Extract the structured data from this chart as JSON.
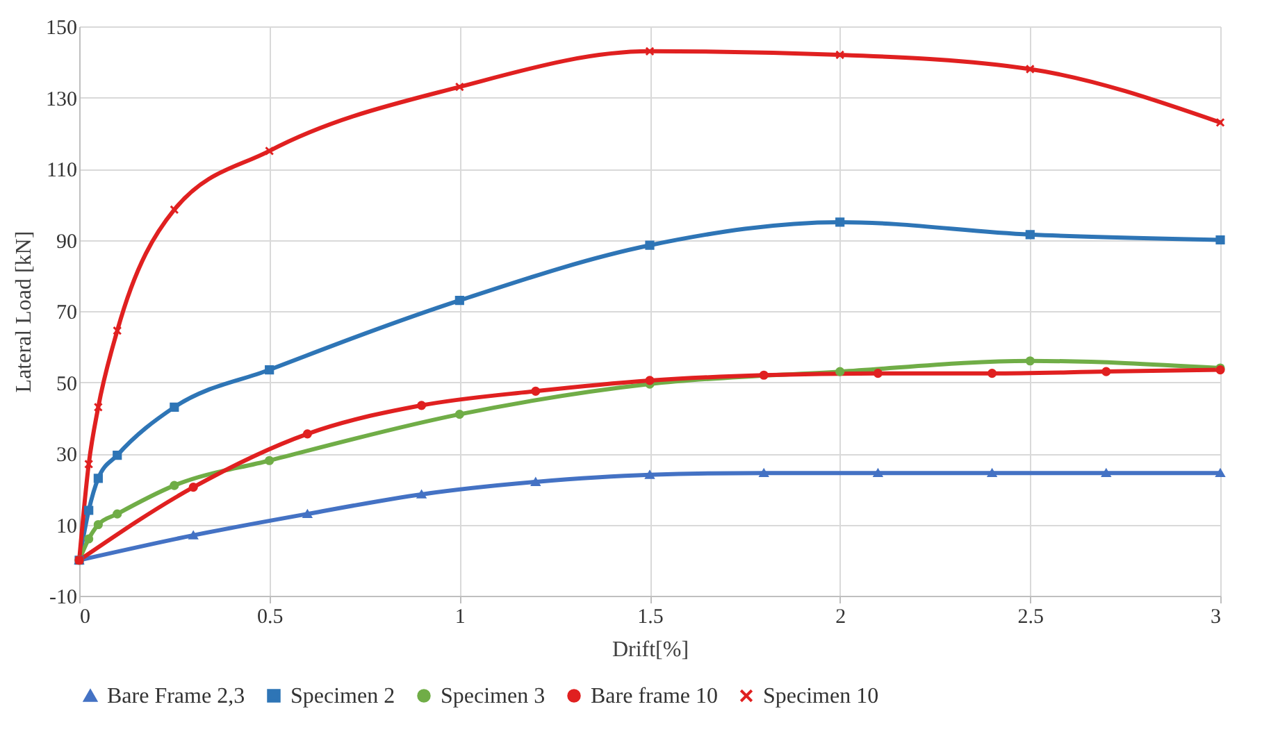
{
  "chart_data": {
    "type": "line",
    "xlabel": "Drift[%]",
    "ylabel": "Lateral Load [kN]",
    "xlim": [
      0,
      3
    ],
    "xticks": [
      0,
      0.5,
      1,
      1.5,
      2,
      2.5,
      3
    ],
    "ylim": [
      -10,
      150
    ],
    "yticks": [
      -10,
      10,
      30,
      50,
      70,
      90,
      110,
      130,
      150
    ],
    "grid": true,
    "legend": "bottom",
    "series": [
      {
        "name": "Bare Frame 2,3",
        "color": "#4472c4",
        "marker": "triangle",
        "x": [
          0,
          0.3,
          0.6,
          0.9,
          1.2,
          1.5,
          1.8,
          2.1,
          2.4,
          2.7,
          3
        ],
        "values": [
          0,
          7,
          13,
          18.5,
          22,
          24,
          24.5,
          24.5,
          24.5,
          24.5,
          24.5
        ]
      },
      {
        "name": "Specimen 2",
        "color": "#2e75b6",
        "marker": "square",
        "x": [
          0,
          0.025,
          0.05,
          0.1,
          0.25,
          0.5,
          1,
          1.5,
          2,
          2.5,
          3
        ],
        "values": [
          0,
          14,
          23,
          29.5,
          43,
          53.5,
          73,
          88.5,
          95,
          91.5,
          90
        ]
      },
      {
        "name": "Specimen 3",
        "color": "#70ad47",
        "marker": "circle",
        "x": [
          0,
          0.025,
          0.05,
          0.1,
          0.25,
          0.5,
          1,
          1.5,
          2,
          2.5,
          3
        ],
        "values": [
          0,
          6,
          10,
          13,
          21,
          28,
          41,
          49.5,
          53,
          56,
          54
        ]
      },
      {
        "name": "Bare frame 10",
        "color": "#e02020",
        "marker": "circle",
        "x": [
          0,
          0.3,
          0.6,
          0.9,
          1.2,
          1.5,
          1.8,
          2.1,
          2.4,
          2.7,
          3
        ],
        "values": [
          0,
          20.5,
          35.5,
          43.5,
          47.5,
          50.5,
          52,
          52.5,
          52.5,
          53,
          53.5
        ]
      },
      {
        "name": "Specimen 10",
        "color": "#e02020",
        "marker": "cross",
        "x": [
          0,
          0.025,
          0.05,
          0.1,
          0.25,
          0.5,
          1,
          1.5,
          2,
          2.5,
          3
        ],
        "values": [
          0,
          27,
          43,
          64.5,
          98.5,
          115,
          133,
          143,
          142,
          138,
          123
        ]
      }
    ]
  }
}
